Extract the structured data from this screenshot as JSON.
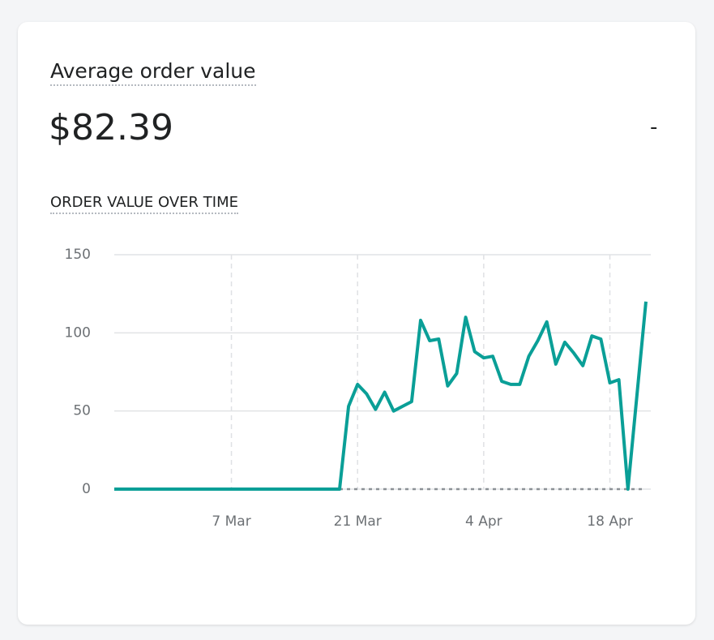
{
  "card": {
    "title": "Average order value",
    "value": "$82.39",
    "comparison": "-"
  },
  "chart_data": {
    "type": "line",
    "title": "ORDER VALUE OVER TIME",
    "categories": [
      null,
      null,
      null,
      null,
      null,
      null,
      null,
      null,
      null,
      null,
      null,
      null,
      null,
      "7 Mar",
      null,
      null,
      null,
      null,
      null,
      null,
      null,
      null,
      null,
      null,
      null,
      null,
      null,
      "21 Mar",
      null,
      null,
      null,
      null,
      null,
      null,
      null,
      null,
      null,
      null,
      null,
      null,
      null,
      "4 Apr",
      null,
      null,
      null,
      null,
      null,
      null,
      null,
      null,
      null,
      null,
      null,
      null,
      null,
      "18 Apr",
      null,
      null,
      null,
      null
    ],
    "series": [
      {
        "color": "#0a9f97",
        "dash": false,
        "values": [
          0,
          0,
          0,
          0,
          0,
          0,
          0,
          0,
          0,
          0,
          0,
          0,
          0,
          0,
          0,
          0,
          0,
          0,
          0,
          0,
          0,
          0,
          0,
          0,
          0,
          0,
          53,
          67,
          61,
          51,
          62,
          50,
          53,
          56,
          108,
          95,
          96,
          66,
          74,
          110,
          88,
          84,
          85,
          69,
          67,
          67,
          85,
          95,
          107,
          80,
          94,
          87,
          79,
          98,
          96,
          68,
          70,
          0,
          60,
          120
        ]
      },
      {
        "color": "#8c9196",
        "dash": true,
        "values": [
          null,
          null,
          null,
          null,
          null,
          null,
          null,
          null,
          null,
          null,
          null,
          null,
          null,
          null,
          null,
          null,
          null,
          null,
          null,
          null,
          null,
          null,
          null,
          null,
          null,
          0,
          0,
          0,
          0,
          0,
          0,
          0,
          0,
          0,
          0,
          0,
          0,
          0,
          0,
          0,
          0,
          0,
          0,
          0,
          0,
          0,
          0,
          0,
          0,
          0,
          0,
          0,
          0,
          0,
          0,
          0,
          0,
          0,
          0,
          0
        ]
      }
    ],
    "ylim": [
      0,
      150
    ],
    "yticks": [
      0,
      50,
      100,
      150
    ],
    "grid": true
  }
}
